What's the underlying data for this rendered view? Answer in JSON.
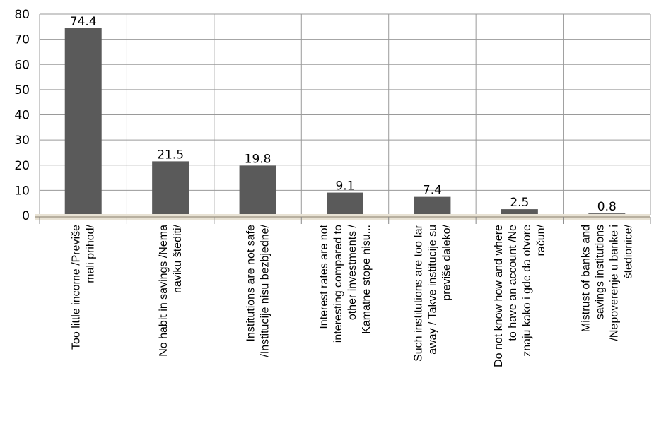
{
  "chart_data": {
    "type": "bar",
    "categories": [
      [
        "Too little income /Previše",
        "mali prihod/"
      ],
      [
        "No habit in savings /Nema",
        "naviku štediti/"
      ],
      [
        "Institutions are not safe",
        "/Institucije nisu bezbjedne/"
      ],
      [
        "Interest rates are not",
        "interesting compared to",
        "other investments /",
        "Kamatne stope nisu..."
      ],
      [
        "Such institutions are too far",
        "away / Takve institucije su",
        "previše daleko/"
      ],
      [
        "Do not know how and where",
        "to have an account /Ne",
        "znaju kako i gde da otvore",
        "račun/"
      ],
      [
        "Mistrust of banks and",
        "savings institutions",
        "/Nepoverenje u banke i",
        "štedionice/"
      ]
    ],
    "values": [
      74.4,
      21.5,
      19.8,
      9.1,
      7.4,
      2.5,
      0.8
    ],
    "value_labels": [
      "74.4",
      "21.5",
      "19.8",
      "9.1",
      "7.4",
      "2.5",
      "0.8"
    ],
    "yticks": [
      "0",
      "10",
      "20",
      "30",
      "40",
      "50",
      "60",
      "70",
      "80"
    ],
    "ylim": [
      0,
      80
    ],
    "grid": true,
    "colors": {
      "bar": "#5a5a5a",
      "grid": "#9a9a9a",
      "axis": "#b8b0a0"
    }
  }
}
